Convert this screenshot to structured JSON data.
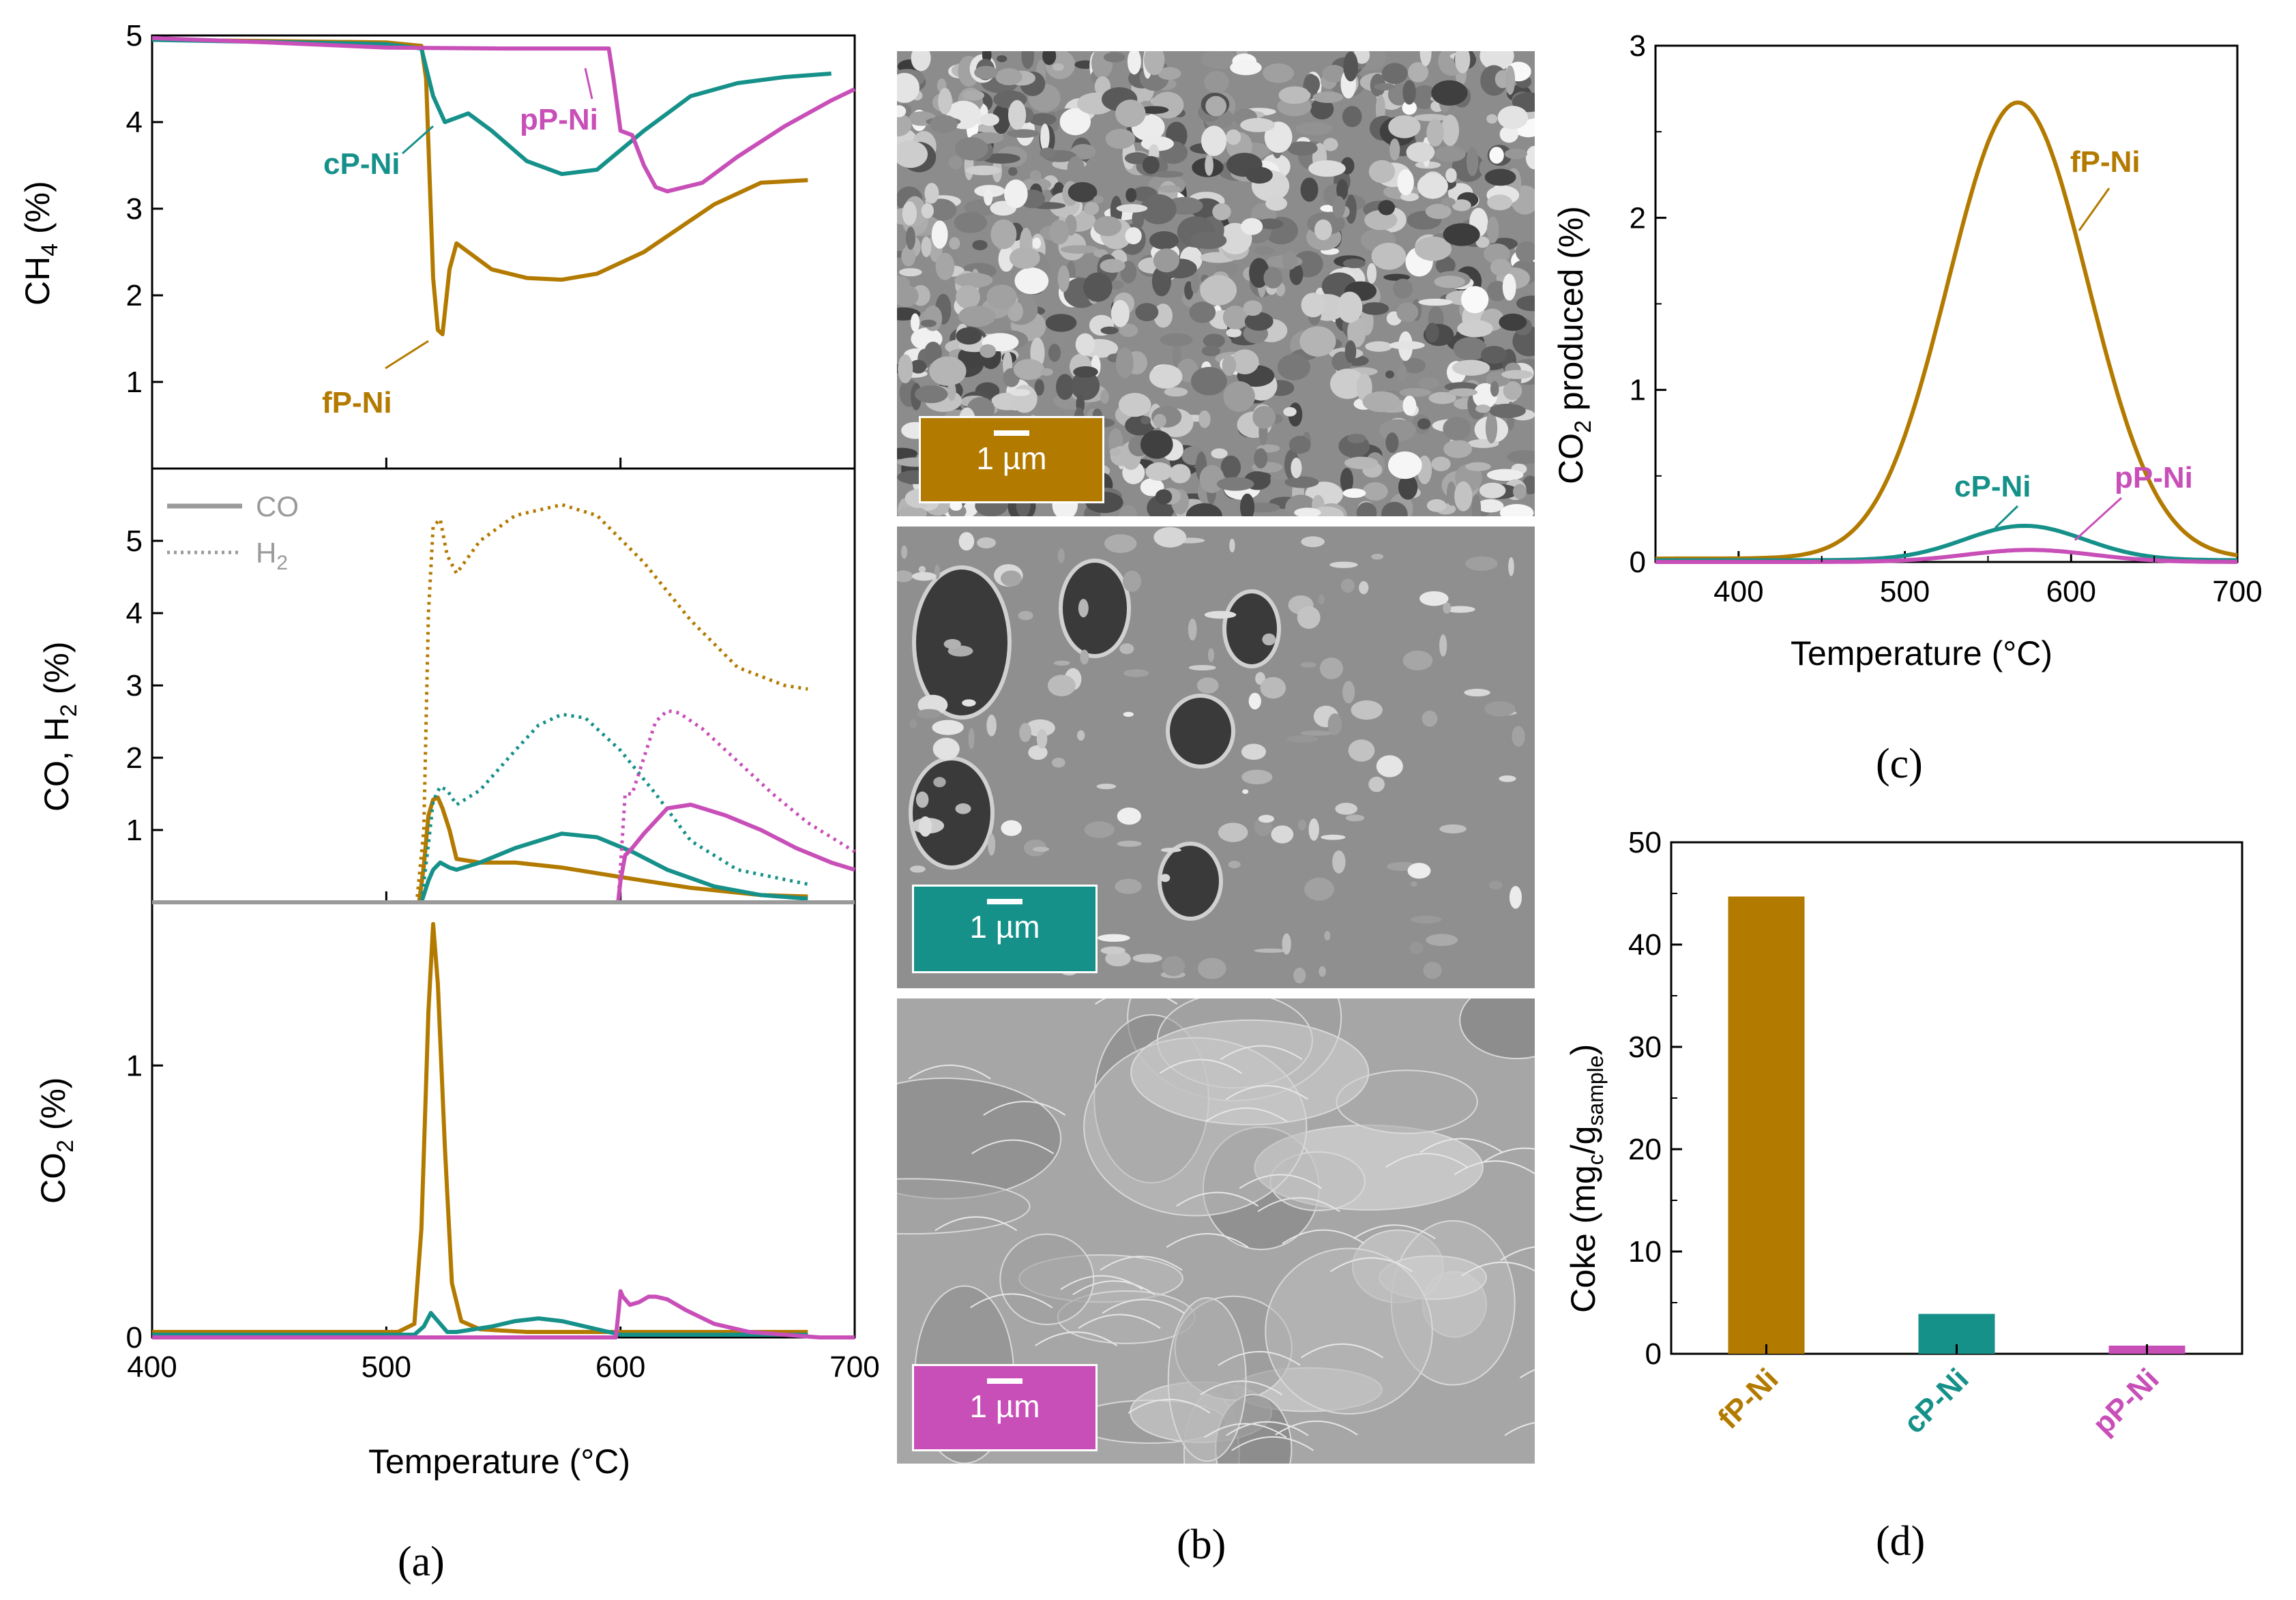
{
  "colors": {
    "fP-Ni": "#b37a00",
    "cP-Ni": "#16918a",
    "pP-Ni": "#c84fb8",
    "legend": "#9a9a9a"
  },
  "samples": [
    "fP-Ni",
    "cP-Ni",
    "pP-Ni"
  ],
  "panel_labels": {
    "a": "(a)",
    "b": "(b)",
    "c": "(c)",
    "d": "(d)"
  },
  "panel_b": {
    "scale_label": "1 µm",
    "images": [
      {
        "sample": "fP-Ni",
        "texture": "fine-particles"
      },
      {
        "sample": "cP-Ni",
        "texture": "porous-film"
      },
      {
        "sample": "pP-Ni",
        "texture": "smooth-layered"
      }
    ]
  },
  "legend": {
    "co": "CO",
    "h2": "H2"
  },
  "chart_data": [
    {
      "id": "a-top",
      "type": "line",
      "xlabel": "Temperature (°C)",
      "ylabel": "CH4 (%)",
      "xlim": [
        400,
        700
      ],
      "ylim": [
        0,
        5
      ],
      "xticks": [
        400,
        500,
        600,
        700
      ],
      "yticks": [
        1,
        2,
        3,
        4,
        5
      ],
      "series": [
        {
          "name": "fP-Ni",
          "x": [
            400,
            500,
            515,
            517,
            520,
            522,
            524,
            527,
            530,
            535,
            545,
            560,
            575,
            590,
            610,
            640,
            660,
            680
          ],
          "y": [
            4.95,
            4.92,
            4.88,
            4.5,
            2.2,
            1.6,
            1.55,
            2.3,
            2.6,
            2.5,
            2.3,
            2.2,
            2.18,
            2.25,
            2.5,
            3.05,
            3.3,
            3.33
          ]
        },
        {
          "name": "cP-Ni",
          "x": [
            400,
            500,
            515,
            520,
            525,
            530,
            535,
            545,
            560,
            575,
            590,
            610,
            630,
            650,
            670,
            690
          ],
          "y": [
            4.95,
            4.9,
            4.85,
            4.3,
            4.0,
            4.05,
            4.1,
            3.9,
            3.55,
            3.4,
            3.45,
            3.9,
            4.3,
            4.45,
            4.52,
            4.56
          ]
        },
        {
          "name": "pP-Ni",
          "x": [
            400,
            450,
            500,
            550,
            595,
            597,
            600,
            605,
            610,
            615,
            620,
            635,
            650,
            670,
            690,
            700
          ],
          "y": [
            4.97,
            4.92,
            4.86,
            4.85,
            4.85,
            4.5,
            3.9,
            3.85,
            3.5,
            3.25,
            3.2,
            3.3,
            3.6,
            3.95,
            4.25,
            4.38
          ]
        }
      ],
      "annotations": [
        "pP-Ni",
        "cP-Ni",
        "fP-Ni"
      ]
    },
    {
      "id": "a-mid",
      "type": "line",
      "xlabel": "Temperature (°C)",
      "ylabel": "CO, H2 (%)",
      "xlim": [
        400,
        700
      ],
      "ylim": [
        0,
        6
      ],
      "xticks": [
        400,
        500,
        600,
        700
      ],
      "yticks": [
        1,
        2,
        3,
        4,
        5
      ],
      "series": [
        {
          "name": "fP-Ni H2",
          "style": "dotted",
          "x": [
            400,
            513,
            516,
            518,
            520,
            523,
            526,
            530,
            540,
            555,
            575,
            590,
            610,
            630,
            650,
            670,
            680
          ],
          "y": [
            0,
            0,
            1.0,
            4.0,
            5.2,
            5.3,
            4.8,
            4.55,
            5.0,
            5.35,
            5.5,
            5.35,
            4.7,
            3.9,
            3.25,
            3.0,
            2.95
          ]
        },
        {
          "name": "fP-Ni CO",
          "style": "solid",
          "x": [
            400,
            514,
            516,
            518,
            520,
            522,
            524,
            527,
            530,
            540,
            555,
            575,
            600,
            630,
            660,
            680
          ],
          "y": [
            0,
            0,
            0.5,
            1.2,
            1.42,
            1.45,
            1.3,
            1.0,
            0.6,
            0.55,
            0.55,
            0.48,
            0.35,
            0.2,
            0.1,
            0.08
          ]
        },
        {
          "name": "cP-Ni H2",
          "style": "dotted",
          "x": [
            400,
            515,
            518,
            520,
            523,
            526,
            530,
            540,
            555,
            565,
            575,
            585,
            600,
            615,
            630,
            650,
            680
          ],
          "y": [
            0,
            0,
            0.8,
            1.4,
            1.6,
            1.55,
            1.35,
            1.55,
            2.1,
            2.45,
            2.6,
            2.55,
            2.1,
            1.5,
            0.85,
            0.45,
            0.25
          ]
        },
        {
          "name": "cP-Ni CO",
          "style": "solid",
          "x": [
            400,
            515,
            518,
            520,
            523,
            527,
            530,
            540,
            555,
            575,
            590,
            605,
            620,
            640,
            660,
            680
          ],
          "y": [
            0,
            0,
            0.3,
            0.45,
            0.55,
            0.48,
            0.45,
            0.55,
            0.75,
            0.95,
            0.9,
            0.7,
            0.45,
            0.22,
            0.1,
            0.05
          ]
        },
        {
          "name": "pP-Ni H2",
          "style": "dotted",
          "x": [
            400,
            599,
            600,
            602,
            605,
            610,
            615,
            620,
            625,
            635,
            650,
            665,
            680,
            690,
            700
          ],
          "y": [
            0,
            0,
            0.5,
            1.5,
            1.5,
            2.0,
            2.5,
            2.65,
            2.62,
            2.4,
            1.95,
            1.5,
            1.1,
            0.9,
            0.7
          ]
        },
        {
          "name": "pP-Ni CO",
          "style": "solid",
          "x": [
            400,
            599,
            600,
            602,
            605,
            610,
            620,
            630,
            645,
            660,
            675,
            690,
            700
          ],
          "y": [
            0,
            0,
            0.3,
            0.65,
            0.75,
            0.95,
            1.3,
            1.35,
            1.2,
            1.0,
            0.75,
            0.55,
            0.45
          ]
        },
        {
          "name": "baseline CO",
          "style": "solid",
          "x": [
            400,
            700
          ],
          "y": [
            0,
            0
          ]
        }
      ]
    },
    {
      "id": "a-bottom",
      "type": "line",
      "xlabel": "Temperature (°C)",
      "ylabel": "CO2 (%)",
      "xlim": [
        400,
        700
      ],
      "ylim": [
        0,
        1.6
      ],
      "xticks": [
        400,
        500,
        600,
        700
      ],
      "yticks": [
        0,
        1
      ],
      "series": [
        {
          "name": "fP-Ni",
          "x": [
            400,
            505,
            512,
            515,
            518,
            520,
            522,
            525,
            528,
            532,
            540,
            560,
            600,
            680
          ],
          "y": [
            0.02,
            0.02,
            0.05,
            0.4,
            1.2,
            1.52,
            1.3,
            0.7,
            0.2,
            0.06,
            0.03,
            0.02,
            0.02,
            0.02
          ]
        },
        {
          "name": "cP-Ni",
          "x": [
            400,
            512,
            516,
            519,
            522,
            526,
            530,
            545,
            555,
            565,
            575,
            590,
            600,
            610,
            680
          ],
          "y": [
            0.01,
            0.01,
            0.04,
            0.09,
            0.06,
            0.02,
            0.02,
            0.04,
            0.06,
            0.07,
            0.06,
            0.03,
            0.01,
            0.01,
            0.01
          ]
        },
        {
          "name": "pP-Ni",
          "x": [
            400,
            598,
            599,
            600,
            601,
            604,
            608,
            612,
            615,
            620,
            628,
            640,
            655,
            670,
            685,
            700
          ],
          "y": [
            0,
            0,
            0.08,
            0.17,
            0.15,
            0.12,
            0.13,
            0.15,
            0.15,
            0.14,
            0.1,
            0.05,
            0.02,
            0.01,
            0,
            0
          ]
        }
      ],
      "xlabel_text": "Temperature (°C)"
    },
    {
      "id": "c",
      "type": "line",
      "xlabel": "Temperature (°C)",
      "ylabel": "CO2 produced (%)",
      "xlim": [
        350,
        700
      ],
      "ylim": [
        0,
        3
      ],
      "xticks": [
        400,
        500,
        600,
        700
      ],
      "yticks": [
        0,
        1,
        2,
        3
      ],
      "series": [
        {
          "name": "fP-Ni",
          "mu": 568,
          "sigma": 42,
          "amp": 2.65,
          "base": 0.02
        },
        {
          "name": "cP-Ni",
          "mu": 572,
          "sigma": 36,
          "amp": 0.2,
          "base": 0.01
        },
        {
          "name": "pP-Ni",
          "mu": 575,
          "sigma": 38,
          "amp": 0.07,
          "base": 0.0
        }
      ]
    },
    {
      "id": "d",
      "type": "bar",
      "categories": [
        "fP-Ni",
        "cP-Ni",
        "pP-Ni"
      ],
      "values": [
        44.7,
        3.9,
        0.8
      ],
      "ylabel": "Coke (mgc/gsample)",
      "ylim": [
        0,
        50
      ],
      "yticks": [
        0,
        10,
        20,
        30,
        40,
        50
      ]
    }
  ]
}
